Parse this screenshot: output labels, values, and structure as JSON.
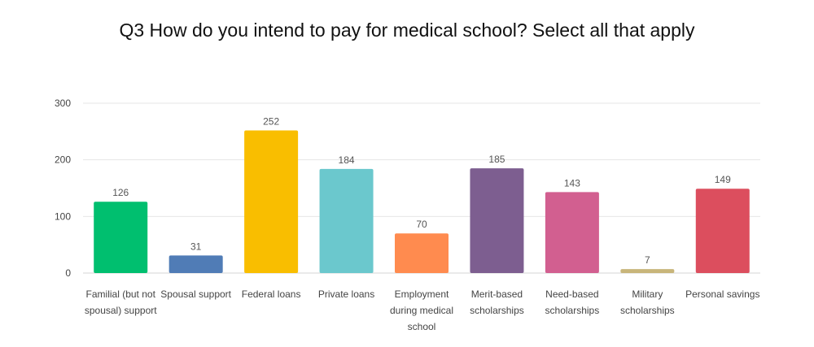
{
  "chart_data": {
    "type": "bar",
    "title": "Q3 How do you intend to pay for medical school? Select all that apply",
    "xlabel": "",
    "ylabel": "",
    "ylim": [
      0,
      300
    ],
    "yticks": [
      0,
      100,
      200,
      300
    ],
    "grid": true,
    "legend": "none",
    "categories": [
      "Familial (but not spousal) support",
      "Spousal support",
      "Federal loans",
      "Private loans",
      "Employment during medical school",
      "Merit-based scholarships",
      "Need-based scholarships",
      "Military scholarships",
      "Personal savings"
    ],
    "values": [
      126,
      31,
      252,
      184,
      70,
      185,
      143,
      7,
      149
    ],
    "colors": [
      "#00bf6f",
      "#507cb6",
      "#f9be00",
      "#6bc8cd",
      "#ff8b4f",
      "#7d5e90",
      "#d25f90",
      "#c8b57a",
      "#dc4e5e"
    ]
  }
}
